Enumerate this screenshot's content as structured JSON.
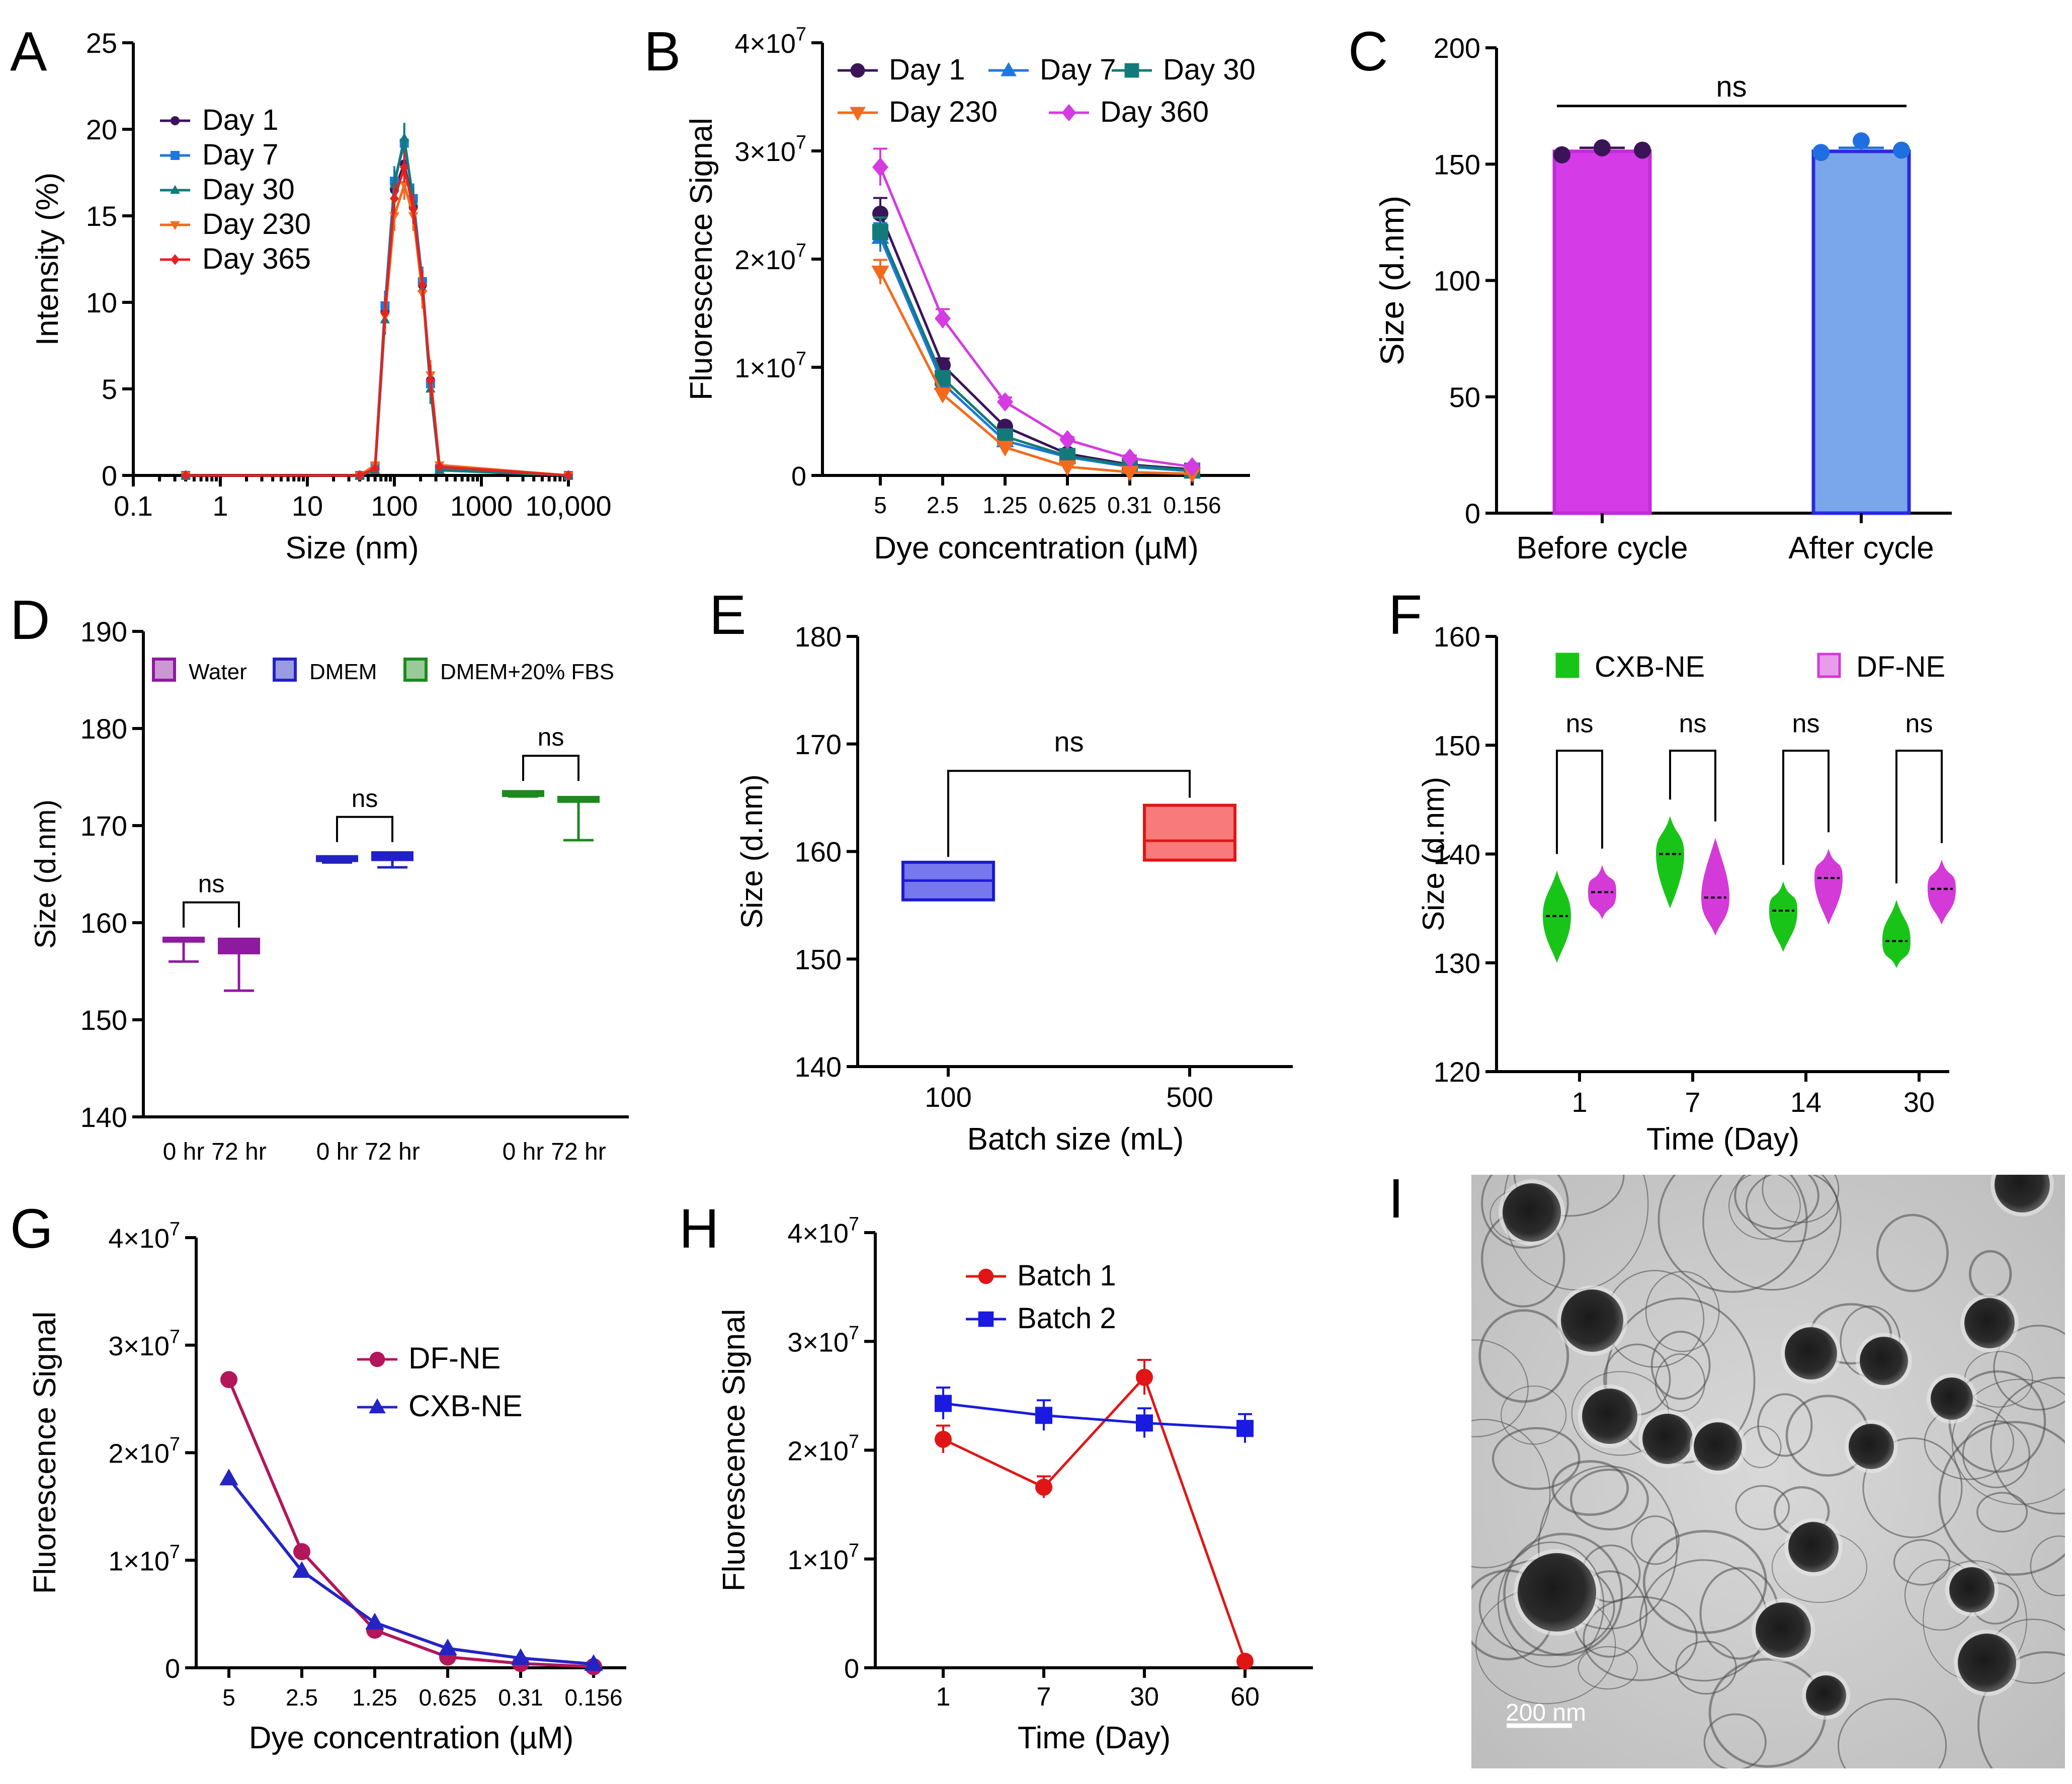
{
  "panel_labels": [
    "A",
    "B",
    "C",
    "D",
    "E",
    "F",
    "G",
    "H",
    "I"
  ],
  "colors": {
    "day1": "#3b1458",
    "day7": "#1f77e0",
    "day30": "#137a7a",
    "day230": "#f26b1d",
    "day360": "#d43be0",
    "day365": "#e02424",
    "magenta_bar": "#d53be6",
    "blue_bar": "#7aa6ec",
    "purple": "#8e1aa0",
    "navy": "#2222c4",
    "green": "#1c8a1c",
    "cxb_green": "#19c419",
    "df_magenta": "#d33ad8",
    "df_ne": "#b3165a",
    "cxb_ne": "#2424c4",
    "batch1": "#e01616",
    "batch2": "#1a1ae0"
  },
  "chart_data": [
    {
      "panel": "A",
      "type": "line",
      "xlabel": "Size (nm)",
      "ylabel": "Intensity (%)",
      "xscale": "log",
      "xticks": [
        "0.1",
        "1",
        "10",
        "100",
        "1000",
        "10,000"
      ],
      "yticks": [
        "0",
        "5",
        "10",
        "15",
        "20",
        "25"
      ],
      "ylim": [
        0,
        25
      ],
      "series": [
        {
          "name": "Day 1",
          "color": "#3b1458",
          "marker": "circle",
          "x": [
            0.4,
            40,
            60,
            78,
            100,
            130,
            165,
            210,
            260,
            330,
            10000
          ],
          "y": [
            0,
            0,
            0.4,
            9.5,
            16.5,
            18,
            15.5,
            11,
            5.5,
            0.5,
            0
          ]
        },
        {
          "name": "Day 7",
          "color": "#1f77e0",
          "marker": "square",
          "x": [
            0.4,
            40,
            60,
            78,
            100,
            130,
            165,
            210,
            260,
            330,
            10000
          ],
          "y": [
            0,
            0,
            0.5,
            9.8,
            17,
            19.2,
            16,
            11.2,
            5.3,
            0.4,
            0
          ]
        },
        {
          "name": "Day 30",
          "color": "#137a7a",
          "marker": "triangle",
          "x": [
            0.4,
            40,
            60,
            78,
            100,
            130,
            165,
            210,
            260,
            330,
            10000
          ],
          "y": [
            0,
            0,
            0.3,
            9,
            16.8,
            19.5,
            15.8,
            10.8,
            5,
            0.3,
            0
          ]
        },
        {
          "name": "Day 230",
          "color": "#f26b1d",
          "marker": "triangle-down",
          "x": [
            0.4,
            40,
            60,
            78,
            100,
            130,
            165,
            210,
            260,
            330,
            10000
          ],
          "y": [
            0,
            0,
            0.6,
            9.2,
            15,
            16.8,
            15,
            10.5,
            5.8,
            0.6,
            0
          ]
        },
        {
          "name": "Day 365",
          "color": "#e02424",
          "marker": "diamond",
          "x": [
            0.4,
            40,
            60,
            78,
            100,
            130,
            165,
            210,
            260,
            330,
            10000
          ],
          "y": [
            0,
            0,
            0.4,
            9.4,
            16,
            17.8,
            15.4,
            11,
            5.5,
            0.5,
            0
          ]
        }
      ]
    },
    {
      "panel": "B",
      "type": "line",
      "xlabel": "Dye concentration (µM)",
      "ylabel": "Fluorescence Signal",
      "categories": [
        "5",
        "2.5",
        "1.25",
        "0.625",
        "0.31",
        "0.156"
      ],
      "yticks": [
        "0",
        "1×10^7",
        "2×10^7",
        "3×10^7",
        "4×10^7"
      ],
      "ylim": [
        0,
        40000000
      ],
      "series": [
        {
          "name": "Day 1",
          "color": "#3b1458",
          "marker": "circle",
          "values": [
            24200000,
            10200000,
            4500000,
            2000000,
            1000000,
            550000
          ]
        },
        {
          "name": "Day 7",
          "color": "#1f77e0",
          "marker": "triangle",
          "values": [
            22000000,
            8500000,
            3200000,
            1700000,
            800000,
            400000
          ]
        },
        {
          "name": "Day 30",
          "color": "#137a7a",
          "marker": "square",
          "values": [
            22500000,
            9000000,
            3600000,
            1800000,
            900000,
            450000
          ]
        },
        {
          "name": "Day 230",
          "color": "#f26b1d",
          "marker": "triangle-down",
          "values": [
            18800000,
            7500000,
            2600000,
            800000,
            300000,
            150000
          ]
        },
        {
          "name": "Day 360",
          "color": "#d43be0",
          "marker": "diamond",
          "values": [
            28500000,
            14500000,
            6800000,
            3300000,
            1600000,
            800000
          ]
        }
      ]
    },
    {
      "panel": "C",
      "type": "bar",
      "xlabel": "",
      "ylabel": "Size (d.nm)",
      "categories": [
        "Before cycle",
        "After cycle"
      ],
      "values": [
        155.5,
        155.5
      ],
      "points": [
        [
          154,
          157,
          156
        ],
        [
          155,
          160,
          156
        ]
      ],
      "yticks": [
        "0",
        "50",
        "100",
        "150",
        "200"
      ],
      "ylim": [
        0,
        200
      ],
      "annotation": "ns"
    },
    {
      "panel": "D",
      "type": "box",
      "xlabel": "",
      "ylabel": "Size (d.nm)",
      "categories": [
        "0 hr",
        "72 hr",
        "0 hr",
        "72 hr",
        "0 hr",
        "72 hr"
      ],
      "legend": [
        "Water",
        "DMEM",
        "DMEM+20% FBS"
      ],
      "groups": [
        {
          "name": "Water",
          "color": "#8e1aa0",
          "boxes": [
            {
              "min": 156,
              "median": 158.2,
              "max": 158.3
            },
            {
              "min": 153,
              "median": 157,
              "max": 158.2
            }
          ]
        },
        {
          "name": "DMEM",
          "color": "#2222c4",
          "boxes": [
            {
              "min": 166.2,
              "median": 166.5,
              "max": 166.7
            },
            {
              "min": 165.7,
              "median": 166.6,
              "max": 167.1
            }
          ]
        },
        {
          "name": "DMEM+20% FBS",
          "color": "#1c8a1c",
          "boxes": [
            {
              "min": 173,
              "median": 173.2,
              "max": 173.4
            },
            {
              "min": 168.5,
              "median": 172.6,
              "max": 172.8
            }
          ]
        }
      ],
      "yticks": [
        "140",
        "150",
        "160",
        "170",
        "180",
        "190"
      ],
      "ylim": [
        140,
        190
      ],
      "annotation": "ns"
    },
    {
      "panel": "E",
      "type": "box",
      "xlabel": "Batch size (mL)",
      "ylabel": "Size (d.nm)",
      "categories": [
        "100",
        "500"
      ],
      "boxes": [
        {
          "q1": 155.5,
          "median": 157.3,
          "q3": 159
        },
        {
          "q1": 159.2,
          "median": 161,
          "q3": 164.3
        }
      ],
      "yticks": [
        "140",
        "150",
        "160",
        "170",
        "180"
      ],
      "ylim": [
        140,
        180
      ],
      "annotation": "ns"
    },
    {
      "panel": "F",
      "type": "violin",
      "xlabel": "Time (Day)",
      "ylabel": "Size (d.nm)",
      "categories": [
        "1",
        "7",
        "14",
        "30"
      ],
      "series": [
        {
          "name": "CXB-NE",
          "color": "#19c419",
          "medians": [
            134.3,
            140,
            134.8,
            132
          ],
          "min": [
            130,
            135,
            131,
            129.5
          ],
          "max": [
            138.5,
            143.5,
            137.5,
            135.8
          ]
        },
        {
          "name": "DF-NE",
          "color": "#d33ad8",
          "medians": [
            136.5,
            136,
            137.8,
            136.8
          ],
          "min": [
            134,
            132.5,
            133.5,
            133.5
          ],
          "max": [
            139,
            141.5,
            140.5,
            139.5
          ]
        }
      ],
      "yticks": [
        "120",
        "130",
        "140",
        "150",
        "160"
      ],
      "ylim": [
        120,
        160
      ],
      "annotation": "ns"
    },
    {
      "panel": "G",
      "type": "line",
      "xlabel": "Dye concentration (µM)",
      "ylabel": "Fluorescence Signal",
      "categories": [
        "5",
        "2.5",
        "1.25",
        "0.625",
        "0.31",
        "0.156"
      ],
      "yticks": [
        "0",
        "1×10^7",
        "2×10^7",
        "3×10^7",
        "4×10^7"
      ],
      "ylim": [
        0,
        40000000
      ],
      "series": [
        {
          "name": "DF-NE",
          "color": "#b3165a",
          "marker": "circle",
          "values": [
            26800000,
            10800000,
            3500000,
            1000000,
            400000,
            100000
          ]
        },
        {
          "name": "CXB-NE",
          "color": "#2424c4",
          "marker": "triangle",
          "values": [
            17600000,
            9000000,
            4200000,
            1800000,
            900000,
            350000
          ]
        }
      ]
    },
    {
      "panel": "H",
      "type": "line",
      "xlabel": "Time (Day)",
      "ylabel": "Fluorescence Signal",
      "categories": [
        "1",
        "7",
        "30",
        "60"
      ],
      "yticks": [
        "0",
        "1×10^7",
        "2×10^7",
        "3×10^7",
        "4×10^7"
      ],
      "ylim": [
        0,
        40000000
      ],
      "series": [
        {
          "name": "Batch 1",
          "color": "#e01616",
          "marker": "circle",
          "values": [
            21000000,
            16600000,
            26700000,
            600000
          ]
        },
        {
          "name": "Batch 2",
          "color": "#1a1ae0",
          "marker": "square",
          "values": [
            24300000,
            23200000,
            22500000,
            22000000
          ]
        }
      ]
    },
    {
      "panel": "I",
      "type": "image",
      "scale_bar": "200  nm"
    }
  ]
}
